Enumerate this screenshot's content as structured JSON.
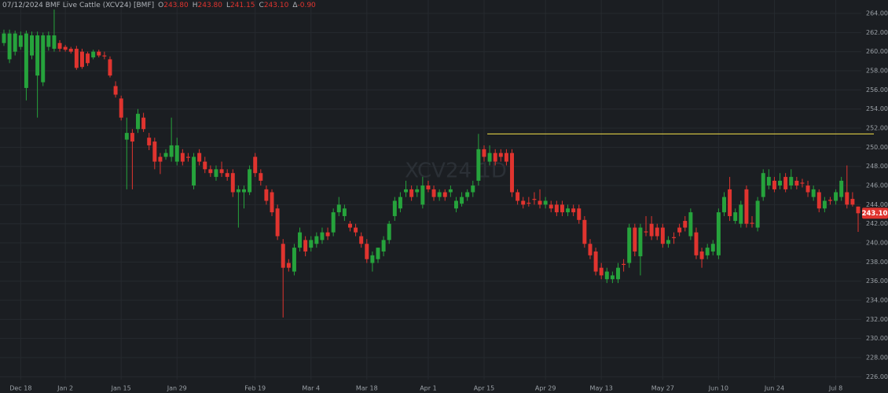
{
  "chart_data": {
    "type": "candlestick",
    "header": {
      "title": "07/12/2024 BMF Live Cattle (XCV24) [BMF]",
      "items": [
        {
          "key": "O",
          "value": "243.80"
        },
        {
          "key": "H",
          "value": "243.80"
        },
        {
          "key": "L",
          "value": "241.15"
        },
        {
          "key": "C",
          "value": "243.10"
        },
        {
          "key": "Δ",
          "value": "-0.90"
        }
      ]
    },
    "watermark": "XCV24 1D",
    "last_price_label": "243.10",
    "up_color": "#26a33c",
    "down_color": "#e0342f",
    "grid": true,
    "ylim": [
      225.7,
      265.4
    ],
    "yticks": [
      {
        "value": 226,
        "label": "226.00"
      },
      {
        "value": 228,
        "label": "228.00"
      },
      {
        "value": 230,
        "label": "230.00"
      },
      {
        "value": 232,
        "label": "232.00"
      },
      {
        "value": 234,
        "label": "234.00"
      },
      {
        "value": 236,
        "label": "236.00"
      },
      {
        "value": 238,
        "label": "238.00"
      },
      {
        "value": 240,
        "label": "240.00"
      },
      {
        "value": 242,
        "label": "242.00"
      },
      {
        "value": 244,
        "label": "244.00"
      },
      {
        "value": 246,
        "label": "246.00"
      },
      {
        "value": 248,
        "label": "248.00"
      },
      {
        "value": 250,
        "label": "250.00"
      },
      {
        "value": 252,
        "label": "252.00"
      },
      {
        "value": 254,
        "label": "254.00"
      },
      {
        "value": 256,
        "label": "256.00"
      },
      {
        "value": 258,
        "label": "258.00"
      },
      {
        "value": 260,
        "label": "260.00"
      },
      {
        "value": 262,
        "label": "262.00"
      },
      {
        "value": 264,
        "label": "264.00"
      }
    ],
    "hline": {
      "value": 251.4,
      "color": "#f5e04a"
    },
    "categories": [
      null,
      null,
      null,
      "Dec 18",
      null,
      null,
      null,
      null,
      null,
      null,
      null,
      "Jan 2",
      null,
      null,
      null,
      null,
      null,
      null,
      null,
      null,
      null,
      "Jan 15",
      null,
      null,
      null,
      null,
      null,
      null,
      null,
      null,
      null,
      "Jan 29",
      null,
      null,
      null,
      null,
      null,
      null,
      null,
      null,
      null,
      null,
      null,
      null,
      null,
      "Feb 19",
      null,
      null,
      null,
      null,
      null,
      null,
      null,
      null,
      null,
      "Mar 4",
      null,
      null,
      null,
      null,
      null,
      null,
      null,
      null,
      null,
      "Mar 18",
      null,
      null,
      null,
      null,
      null,
      null,
      null,
      null,
      null,
      null,
      "Apr 1",
      null,
      null,
      null,
      null,
      null,
      null,
      null,
      null,
      null,
      "Apr 15",
      null,
      null,
      null,
      null,
      null,
      null,
      null,
      null,
      null,
      null,
      "Apr 29",
      null,
      null,
      null,
      null,
      null,
      null,
      null,
      null,
      null,
      "May 13",
      null,
      null,
      null,
      null,
      null,
      null,
      null,
      null,
      null,
      null,
      "May 27",
      null,
      null,
      null,
      null,
      null,
      null,
      null,
      null,
      null,
      "Jun 10",
      null,
      null,
      null,
      null,
      null,
      null,
      null,
      null,
      null,
      "Jun 24",
      null,
      null,
      null,
      null,
      null,
      null,
      null,
      null,
      null,
      null,
      "Jul 8",
      null,
      null,
      null,
      null
    ],
    "open": [
      260.9,
      259.2,
      260.0,
      260.5,
      256.2,
      259.6,
      257.5,
      256.8,
      260.5,
      260.3,
      260.9,
      260.5,
      260.3,
      260.3,
      260.0,
      259.8,
      259.4,
      260.0,
      259.6,
      259.2,
      256.4,
      255.1,
      250.8,
      251.5,
      251.9,
      253.1,
      251.0,
      250.6,
      249.0,
      249.0,
      249.0,
      248.5,
      249.4,
      249.0,
      246.0,
      249.4,
      248.5,
      247.7,
      246.9,
      247.7,
      247.3,
      247.3,
      245.3,
      245.3,
      245.3,
      249.0,
      247.3,
      245.6,
      245.3,
      243.6,
      239.9,
      237.9,
      237.0,
      239.5,
      240.3,
      239.5,
      239.9,
      240.3,
      241.1,
      241.1,
      243.2,
      242.8,
      242.0,
      241.6,
      240.7,
      239.9,
      237.9,
      238.3,
      239.1,
      240.3,
      242.8,
      243.6,
      245.3,
      245.6,
      245.3,
      244.0,
      246.0,
      245.6,
      244.8,
      245.3,
      245.3,
      243.6,
      244.1,
      244.8,
      245.3,
      246.5,
      249.8,
      248.5,
      249.4,
      249.4,
      249.4,
      249.4,
      245.3,
      244.4,
      244.2,
      244.6,
      244.4,
      244.0,
      244.0,
      244.0,
      244.0,
      243.2,
      243.6,
      243.6,
      242.4,
      239.9,
      239.1,
      237.4,
      236.2,
      236.2,
      236.2,
      237.8,
      237.9,
      241.6,
      238.6,
      241.2,
      242.0,
      241.6,
      241.6,
      239.9,
      240.6,
      241.6,
      242.3,
      240.7,
      241.1,
      239.1,
      238.7,
      239.1,
      238.7,
      243.2,
      245.6,
      242.3,
      242.0,
      245.6,
      242.1,
      241.6,
      244.8,
      246.0,
      246.5,
      246.0,
      246.9,
      246.0,
      246.5,
      246.3,
      246.0,
      244.8,
      245.3,
      243.6,
      244.5,
      244.4,
      244.8,
      245.3,
      244.6,
      243.8
    ],
    "high": [
      262.3,
      262.3,
      262.2,
      262.1,
      262.2,
      262.1,
      262.1,
      262.0,
      262.1,
      264.4,
      261.2,
      260.7,
      260.5,
      260.6,
      260.3,
      260.0,
      260.2,
      260.2,
      260.0,
      259.5,
      256.9,
      255.4,
      253.1,
      251.9,
      254.0,
      253.6,
      251.5,
      251.0,
      249.4,
      249.8,
      253.1,
      251.0,
      249.8,
      249.4,
      249.4,
      249.8,
      249.0,
      248.1,
      248.1,
      248.5,
      247.7,
      247.7,
      246.0,
      246.0,
      248.1,
      249.4,
      247.7,
      246.0,
      245.6,
      244.0,
      240.4,
      238.3,
      239.9,
      241.6,
      240.7,
      240.7,
      241.1,
      241.6,
      241.6,
      243.6,
      244.8,
      244.0,
      242.3,
      242.0,
      241.1,
      240.4,
      239.1,
      239.5,
      240.7,
      242.3,
      244.8,
      245.3,
      246.5,
      246.0,
      246.0,
      246.9,
      246.5,
      246.0,
      245.6,
      245.6,
      246.0,
      244.8,
      245.3,
      245.6,
      246.5,
      251.4,
      250.2,
      250.2,
      249.8,
      249.8,
      249.8,
      249.8,
      245.6,
      244.8,
      244.8,
      245.3,
      245.6,
      244.8,
      244.4,
      244.4,
      244.4,
      244.0,
      244.0,
      244.0,
      242.8,
      240.4,
      239.5,
      237.9,
      237.4,
      237.0,
      237.9,
      238.3,
      242.0,
      242.0,
      242.0,
      242.8,
      242.8,
      242.0,
      242.0,
      240.7,
      241.1,
      242.0,
      242.8,
      243.6,
      241.6,
      239.5,
      239.9,
      240.3,
      243.6,
      245.3,
      246.9,
      243.6,
      244.4,
      246.0,
      242.8,
      244.8,
      247.7,
      247.7,
      246.9,
      247.3,
      247.3,
      247.7,
      246.9,
      246.7,
      246.5,
      246.0,
      245.6,
      244.8,
      244.8,
      245.6,
      246.9,
      248.1,
      245.3,
      243.8
    ],
    "low": [
      260.6,
      258.8,
      259.6,
      260.2,
      254.9,
      259.2,
      253.1,
      256.4,
      260.1,
      260.0,
      260.0,
      260.0,
      259.8,
      258.1,
      258.2,
      258.5,
      259.2,
      259.4,
      259.2,
      257.3,
      255.2,
      252.8,
      245.6,
      245.6,
      251.5,
      251.6,
      249.7,
      247.7,
      247.2,
      248.7,
      248.5,
      248.1,
      248.1,
      248.5,
      245.6,
      248.1,
      247.3,
      246.9,
      246.5,
      246.9,
      246.5,
      244.8,
      241.6,
      243.6,
      245.0,
      246.9,
      246.0,
      244.0,
      242.8,
      240.3,
      232.2,
      237.0,
      236.6,
      239.1,
      238.6,
      239.1,
      239.5,
      239.9,
      240.3,
      240.7,
      242.8,
      242.3,
      241.2,
      240.7,
      239.5,
      237.9,
      237.0,
      237.9,
      238.6,
      239.9,
      242.3,
      243.2,
      244.8,
      244.4,
      244.8,
      243.6,
      245.3,
      244.4,
      244.4,
      244.4,
      244.8,
      243.2,
      243.8,
      244.4,
      244.8,
      246.0,
      248.5,
      248.1,
      248.1,
      248.5,
      248.1,
      244.8,
      244.0,
      243.6,
      243.8,
      244.0,
      243.6,
      243.6,
      243.2,
      242.8,
      242.8,
      242.8,
      242.8,
      242.0,
      239.5,
      238.3,
      236.6,
      236.2,
      235.8,
      235.8,
      235.8,
      237.0,
      237.4,
      238.6,
      236.6,
      240.7,
      240.3,
      240.3,
      239.5,
      239.5,
      239.9,
      240.7,
      241.2,
      240.3,
      238.3,
      237.4,
      238.3,
      238.7,
      238.3,
      242.8,
      242.3,
      242.0,
      241.6,
      241.6,
      241.6,
      241.2,
      244.4,
      245.6,
      245.3,
      245.6,
      245.3,
      245.6,
      245.6,
      245.8,
      244.8,
      244.4,
      243.2,
      243.2,
      244.0,
      244.0,
      244.4,
      243.6,
      243.8,
      241.15
    ],
    "close": [
      261.9,
      261.9,
      261.9,
      261.7,
      261.9,
      261.7,
      261.7,
      261.7,
      261.7,
      261.7,
      260.3,
      260.2,
      260.0,
      258.3,
      258.4,
      258.8,
      260.0,
      259.6,
      259.5,
      257.5,
      255.5,
      253.1,
      251.5,
      250.6,
      253.5,
      251.9,
      250.2,
      248.5,
      248.5,
      249.4,
      250.2,
      250.2,
      248.5,
      248.9,
      249.0,
      248.5,
      247.7,
      247.3,
      247.7,
      247.3,
      246.9,
      245.3,
      245.6,
      245.6,
      247.7,
      247.3,
      246.5,
      244.4,
      243.2,
      240.7,
      237.4,
      237.4,
      239.5,
      241.1,
      239.1,
      240.3,
      240.7,
      241.1,
      240.7,
      243.2,
      244.0,
      243.6,
      241.6,
      241.1,
      239.9,
      238.3,
      238.7,
      239.5,
      240.3,
      242.0,
      244.4,
      244.8,
      245.6,
      244.8,
      245.6,
      246.0,
      245.6,
      244.8,
      245.3,
      244.8,
      245.6,
      244.4,
      244.8,
      245.3,
      246.0,
      249.8,
      249.0,
      249.4,
      248.5,
      249.0,
      248.5,
      245.3,
      244.4,
      244.0,
      244.1,
      244.5,
      244.0,
      244.4,
      243.6,
      243.2,
      243.2,
      243.6,
      243.2,
      242.4,
      239.9,
      238.7,
      237.0,
      236.6,
      237.0,
      236.6,
      237.4,
      237.7,
      241.6,
      239.1,
      241.6,
      241.1,
      240.7,
      240.7,
      239.9,
      240.3,
      240.5,
      241.1,
      241.6,
      243.2,
      238.7,
      238.3,
      239.5,
      239.9,
      243.2,
      244.8,
      242.8,
      243.2,
      244.0,
      242.0,
      242.0,
      244.4,
      247.3,
      246.9,
      245.6,
      246.5,
      245.6,
      246.9,
      246.0,
      246.2,
      245.3,
      245.6,
      243.6,
      244.4,
      244.4,
      245.3,
      246.5,
      244.0,
      244.0,
      243.1
    ]
  }
}
